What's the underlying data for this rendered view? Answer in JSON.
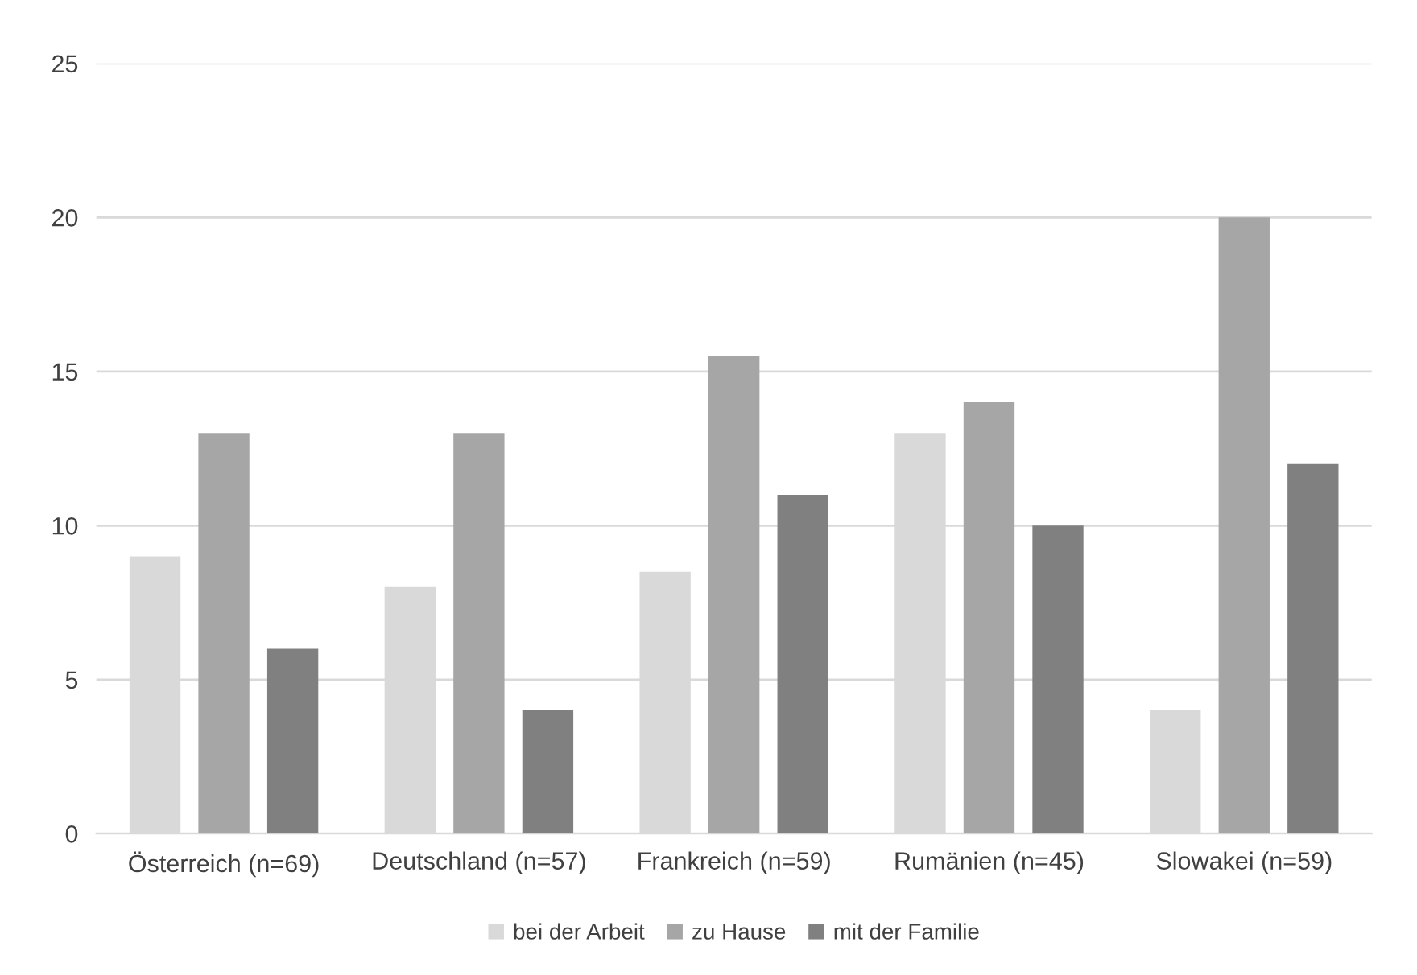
{
  "chart_data": {
    "type": "bar",
    "categories": [
      "Österreich (n=69)",
      "Deutschland (n=57)",
      "Frankreich (n=59)",
      "Rumänien (n=45)",
      "Slowakei (n=59)"
    ],
    "series": [
      {
        "name": "bei der Arbeit",
        "color": "#d9d9d9",
        "values": [
          9,
          8,
          8.5,
          13,
          4
        ]
      },
      {
        "name": "zu Hause",
        "color": "#a6a6a6",
        "values": [
          13,
          13,
          15.5,
          14,
          20
        ]
      },
      {
        "name": "mit der Familie",
        "color": "#808080",
        "values": [
          6,
          4,
          11,
          10,
          12
        ]
      }
    ],
    "ylim": [
      0,
      25
    ],
    "yticks": [
      0,
      5,
      10,
      15,
      20,
      25
    ],
    "grid": "y",
    "legend": "bottom"
  }
}
